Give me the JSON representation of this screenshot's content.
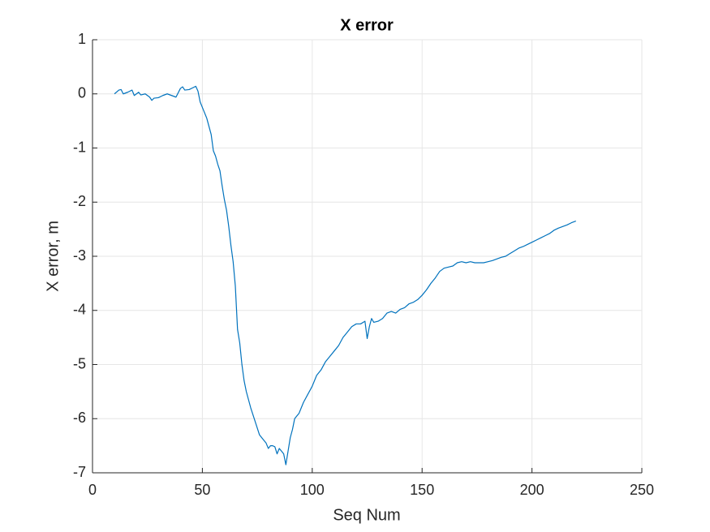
{
  "chart_data": {
    "type": "line",
    "title": "X error",
    "x_label": "Seq Num",
    "y_label": "X error, m",
    "x": [
      10,
      12,
      13,
      14,
      16,
      18,
      19,
      21,
      22,
      24,
      26,
      27,
      28,
      30,
      32,
      34,
      36,
      38,
      40,
      41,
      42,
      44,
      46,
      47,
      48,
      49,
      50,
      52,
      54,
      55,
      56,
      57,
      58,
      59,
      60,
      61,
      62,
      63,
      64,
      65,
      66,
      67,
      68,
      69,
      70,
      71,
      72,
      74,
      76,
      78,
      79,
      80,
      81,
      82,
      83,
      84,
      85,
      86,
      87,
      88,
      89,
      90,
      91,
      92,
      93,
      94,
      96,
      98,
      100,
      102,
      104,
      106,
      108,
      110,
      112,
      114,
      116,
      118,
      120,
      122,
      124,
      125,
      126,
      127,
      128,
      130,
      132,
      134,
      136,
      138,
      140,
      142,
      144,
      146,
      148,
      150,
      152,
      154,
      156,
      158,
      160,
      162,
      164,
      166,
      168,
      170,
      172,
      174,
      176,
      178,
      180,
      182,
      184,
      186,
      188,
      190,
      192,
      194,
      196,
      198,
      200,
      202,
      204,
      206,
      208,
      210,
      212,
      214,
      216,
      218,
      220
    ],
    "series": [
      {
        "name": "X error",
        "color": "#0072bd",
        "values": [
          0,
          0.07,
          0.08,
          0,
          0.03,
          0.07,
          -0.03,
          0.03,
          -0.02,
          0,
          -0.06,
          -0.12,
          -0.08,
          -0.07,
          -0.03,
          0,
          -0.03,
          -0.06,
          0.1,
          0.13,
          0.07,
          0.08,
          0.12,
          0.14,
          0.05,
          -0.15,
          -0.25,
          -0.45,
          -0.75,
          -1.05,
          -1.15,
          -1.3,
          -1.42,
          -1.7,
          -1.95,
          -2.15,
          -2.45,
          -2.8,
          -3.1,
          -3.55,
          -4.35,
          -4.6,
          -5,
          -5.3,
          -5.5,
          -5.65,
          -5.8,
          -6.05,
          -6.3,
          -6.4,
          -6.45,
          -6.55,
          -6.5,
          -6.5,
          -6.52,
          -6.65,
          -6.55,
          -6.6,
          -6.65,
          -6.85,
          -6.6,
          -6.35,
          -6.2,
          -6,
          -5.95,
          -5.9,
          -5.7,
          -5.55,
          -5.4,
          -5.2,
          -5.1,
          -4.95,
          -4.85,
          -4.75,
          -4.65,
          -4.5,
          -4.4,
          -4.3,
          -4.25,
          -4.25,
          -4.2,
          -4.52,
          -4.3,
          -4.15,
          -4.22,
          -4.2,
          -4.15,
          -4.05,
          -4.02,
          -4.05,
          -3.98,
          -3.95,
          -3.88,
          -3.85,
          -3.8,
          -3.72,
          -3.62,
          -3.5,
          -3.4,
          -3.28,
          -3.22,
          -3.2,
          -3.18,
          -3.12,
          -3.1,
          -3.12,
          -3.1,
          -3.12,
          -3.12,
          -3.12,
          -3.1,
          -3.08,
          -3.05,
          -3.02,
          -3,
          -2.95,
          -2.9,
          -2.85,
          -2.82,
          -2.78,
          -2.74,
          -2.7,
          -2.66,
          -2.62,
          -2.58,
          -2.52,
          -2.48,
          -2.45,
          -2.42,
          -2.38,
          -2.35
        ]
      }
    ],
    "xlim": [
      0,
      250
    ],
    "xticks": [
      0,
      50,
      100,
      150,
      200,
      250
    ],
    "ylim": [
      -7,
      1
    ],
    "yticks": [
      -7,
      -6,
      -5,
      -4,
      -3,
      -2,
      -1,
      0,
      1
    ],
    "grid": true
  }
}
